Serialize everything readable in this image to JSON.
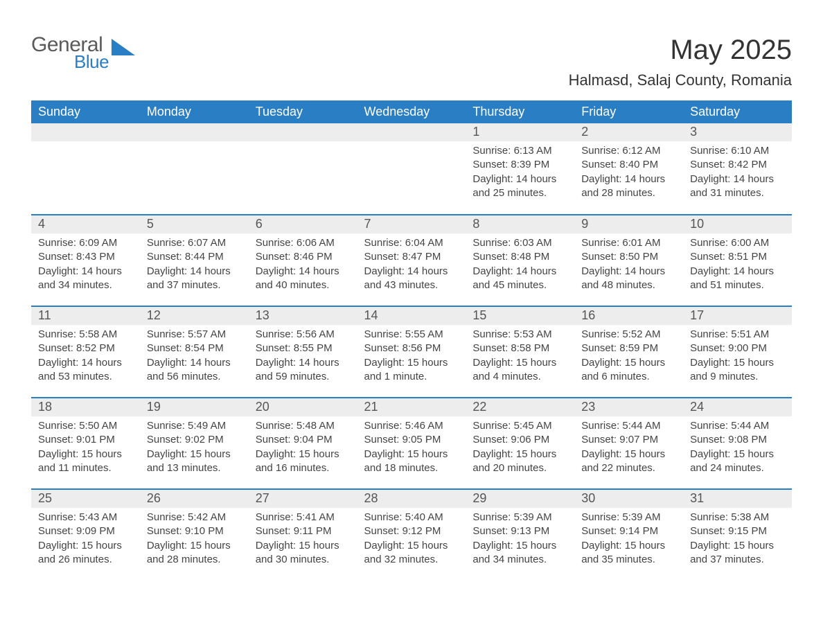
{
  "logo": {
    "general": "General",
    "blue": "Blue",
    "triangle_color": "#2a7ec3"
  },
  "title": "May 2025",
  "location": "Halmasd, Salaj County, Romania",
  "colors": {
    "header_bg": "#2a7ec3",
    "header_text": "#ffffff",
    "daynum_bg": "#ededed",
    "daynum_text": "#555555",
    "detail_text": "#444444",
    "row_divider": "#2a7ec3",
    "page_bg": "#ffffff"
  },
  "typography": {
    "title_fontsize": 40,
    "location_fontsize": 22,
    "weekday_fontsize": 18,
    "daynum_fontsize": 18,
    "detail_fontsize": 15
  },
  "calendar": {
    "weekdays": [
      "Sunday",
      "Monday",
      "Tuesday",
      "Wednesday",
      "Thursday",
      "Friday",
      "Saturday"
    ],
    "leading_blanks": 4,
    "days": [
      {
        "n": 1,
        "sunrise": "6:13 AM",
        "sunset": "8:39 PM",
        "daylight": "14 hours and 25 minutes."
      },
      {
        "n": 2,
        "sunrise": "6:12 AM",
        "sunset": "8:40 PM",
        "daylight": "14 hours and 28 minutes."
      },
      {
        "n": 3,
        "sunrise": "6:10 AM",
        "sunset": "8:42 PM",
        "daylight": "14 hours and 31 minutes."
      },
      {
        "n": 4,
        "sunrise": "6:09 AM",
        "sunset": "8:43 PM",
        "daylight": "14 hours and 34 minutes."
      },
      {
        "n": 5,
        "sunrise": "6:07 AM",
        "sunset": "8:44 PM",
        "daylight": "14 hours and 37 minutes."
      },
      {
        "n": 6,
        "sunrise": "6:06 AM",
        "sunset": "8:46 PM",
        "daylight": "14 hours and 40 minutes."
      },
      {
        "n": 7,
        "sunrise": "6:04 AM",
        "sunset": "8:47 PM",
        "daylight": "14 hours and 43 minutes."
      },
      {
        "n": 8,
        "sunrise": "6:03 AM",
        "sunset": "8:48 PM",
        "daylight": "14 hours and 45 minutes."
      },
      {
        "n": 9,
        "sunrise": "6:01 AM",
        "sunset": "8:50 PM",
        "daylight": "14 hours and 48 minutes."
      },
      {
        "n": 10,
        "sunrise": "6:00 AM",
        "sunset": "8:51 PM",
        "daylight": "14 hours and 51 minutes."
      },
      {
        "n": 11,
        "sunrise": "5:58 AM",
        "sunset": "8:52 PM",
        "daylight": "14 hours and 53 minutes."
      },
      {
        "n": 12,
        "sunrise": "5:57 AM",
        "sunset": "8:54 PM",
        "daylight": "14 hours and 56 minutes."
      },
      {
        "n": 13,
        "sunrise": "5:56 AM",
        "sunset": "8:55 PM",
        "daylight": "14 hours and 59 minutes."
      },
      {
        "n": 14,
        "sunrise": "5:55 AM",
        "sunset": "8:56 PM",
        "daylight": "15 hours and 1 minute."
      },
      {
        "n": 15,
        "sunrise": "5:53 AM",
        "sunset": "8:58 PM",
        "daylight": "15 hours and 4 minutes."
      },
      {
        "n": 16,
        "sunrise": "5:52 AM",
        "sunset": "8:59 PM",
        "daylight": "15 hours and 6 minutes."
      },
      {
        "n": 17,
        "sunrise": "5:51 AM",
        "sunset": "9:00 PM",
        "daylight": "15 hours and 9 minutes."
      },
      {
        "n": 18,
        "sunrise": "5:50 AM",
        "sunset": "9:01 PM",
        "daylight": "15 hours and 11 minutes."
      },
      {
        "n": 19,
        "sunrise": "5:49 AM",
        "sunset": "9:02 PM",
        "daylight": "15 hours and 13 minutes."
      },
      {
        "n": 20,
        "sunrise": "5:48 AM",
        "sunset": "9:04 PM",
        "daylight": "15 hours and 16 minutes."
      },
      {
        "n": 21,
        "sunrise": "5:46 AM",
        "sunset": "9:05 PM",
        "daylight": "15 hours and 18 minutes."
      },
      {
        "n": 22,
        "sunrise": "5:45 AM",
        "sunset": "9:06 PM",
        "daylight": "15 hours and 20 minutes."
      },
      {
        "n": 23,
        "sunrise": "5:44 AM",
        "sunset": "9:07 PM",
        "daylight": "15 hours and 22 minutes."
      },
      {
        "n": 24,
        "sunrise": "5:44 AM",
        "sunset": "9:08 PM",
        "daylight": "15 hours and 24 minutes."
      },
      {
        "n": 25,
        "sunrise": "5:43 AM",
        "sunset": "9:09 PM",
        "daylight": "15 hours and 26 minutes."
      },
      {
        "n": 26,
        "sunrise": "5:42 AM",
        "sunset": "9:10 PM",
        "daylight": "15 hours and 28 minutes."
      },
      {
        "n": 27,
        "sunrise": "5:41 AM",
        "sunset": "9:11 PM",
        "daylight": "15 hours and 30 minutes."
      },
      {
        "n": 28,
        "sunrise": "5:40 AM",
        "sunset": "9:12 PM",
        "daylight": "15 hours and 32 minutes."
      },
      {
        "n": 29,
        "sunrise": "5:39 AM",
        "sunset": "9:13 PM",
        "daylight": "15 hours and 34 minutes."
      },
      {
        "n": 30,
        "sunrise": "5:39 AM",
        "sunset": "9:14 PM",
        "daylight": "15 hours and 35 minutes."
      },
      {
        "n": 31,
        "sunrise": "5:38 AM",
        "sunset": "9:15 PM",
        "daylight": "15 hours and 37 minutes."
      }
    ],
    "labels": {
      "sunrise": "Sunrise:",
      "sunset": "Sunset:",
      "daylight": "Daylight:"
    }
  }
}
